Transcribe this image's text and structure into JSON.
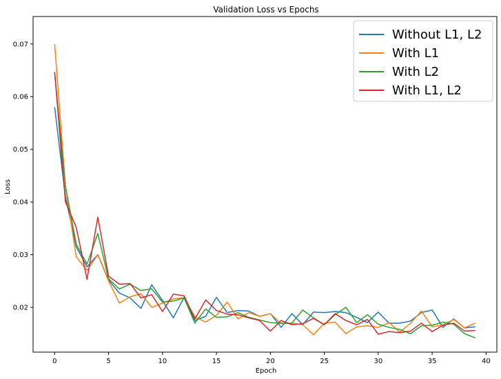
{
  "chart_data": {
    "type": "line",
    "title": "Validation Loss vs Epochs",
    "xlabel": "Epoch",
    "ylabel": "Loss",
    "xlim": [
      -2,
      41
    ],
    "ylim": [
      0.0115,
      0.0752
    ],
    "xticks": [
      0,
      5,
      10,
      15,
      20,
      25,
      30,
      35,
      40
    ],
    "yticks": [
      0.02,
      0.03,
      0.04,
      0.05,
      0.06,
      0.07
    ],
    "ytick_labels": [
      "0.02",
      "0.03",
      "0.04",
      "0.05",
      "0.06",
      "0.07"
    ],
    "grid": false,
    "legend_position": "upper-right",
    "x": [
      0,
      1,
      2,
      3,
      4,
      5,
      6,
      7,
      8,
      9,
      10,
      11,
      12,
      13,
      14,
      15,
      16,
      17,
      18,
      19,
      20,
      21,
      22,
      23,
      24,
      25,
      26,
      27,
      28,
      29,
      30,
      31,
      32,
      33,
      34,
      35,
      36,
      37,
      38,
      39
    ],
    "series": [
      {
        "name": "Without L1, L2",
        "color": "#1f77b4",
        "values": [
          0.058,
          0.041,
          0.0315,
          0.0277,
          0.03,
          0.0252,
          0.0227,
          0.0218,
          0.0198,
          0.0243,
          0.0213,
          0.018,
          0.0219,
          0.0175,
          0.0183,
          0.0219,
          0.019,
          0.0194,
          0.0193,
          0.0183,
          0.0188,
          0.0162,
          0.0188,
          0.0167,
          0.0191,
          0.019,
          0.0192,
          0.019,
          0.0181,
          0.0171,
          0.0191,
          0.017,
          0.017,
          0.0174,
          0.019,
          0.0195,
          0.0162,
          0.0178,
          0.0161,
          0.0163
        ]
      },
      {
        "name": "With L1",
        "color": "#ff7f0e",
        "values": [
          0.07,
          0.043,
          0.0296,
          0.027,
          0.03,
          0.025,
          0.0208,
          0.022,
          0.0226,
          0.02,
          0.0208,
          0.0216,
          0.0218,
          0.0182,
          0.0172,
          0.0185,
          0.021,
          0.0178,
          0.019,
          0.0183,
          0.0188,
          0.0169,
          0.017,
          0.0167,
          0.0148,
          0.017,
          0.0172,
          0.015,
          0.0163,
          0.0165,
          0.0162,
          0.0171,
          0.0153,
          0.017,
          0.0193,
          0.0163,
          0.0167,
          0.0177,
          0.0161,
          0.017
        ]
      },
      {
        "name": "With L2",
        "color": "#2ca02c",
        "values": [
          0.0645,
          0.043,
          0.032,
          0.0282,
          0.034,
          0.0254,
          0.0235,
          0.0244,
          0.0232,
          0.0235,
          0.021,
          0.0212,
          0.0218,
          0.017,
          0.0197,
          0.0181,
          0.0182,
          0.019,
          0.0181,
          0.0176,
          0.0171,
          0.017,
          0.017,
          0.0195,
          0.018,
          0.0167,
          0.0186,
          0.02,
          0.0171,
          0.0186,
          0.0168,
          0.0162,
          0.0158,
          0.015,
          0.0165,
          0.0166,
          0.0172,
          0.0168,
          0.015,
          0.0142
        ]
      },
      {
        "name": "With L1, L2",
        "color": "#d62728",
        "values": [
          0.0647,
          0.04,
          0.0352,
          0.0253,
          0.0371,
          0.0259,
          0.0244,
          0.0245,
          0.0218,
          0.0224,
          0.0192,
          0.0225,
          0.0222,
          0.0178,
          0.0214,
          0.0194,
          0.0187,
          0.0186,
          0.018,
          0.0175,
          0.0155,
          0.0175,
          0.0167,
          0.0169,
          0.0179,
          0.0167,
          0.0188,
          0.0175,
          0.0167,
          0.0177,
          0.0149,
          0.0154,
          0.0152,
          0.0155,
          0.017,
          0.0154,
          0.0166,
          0.017,
          0.0155,
          0.0156
        ]
      }
    ]
  }
}
